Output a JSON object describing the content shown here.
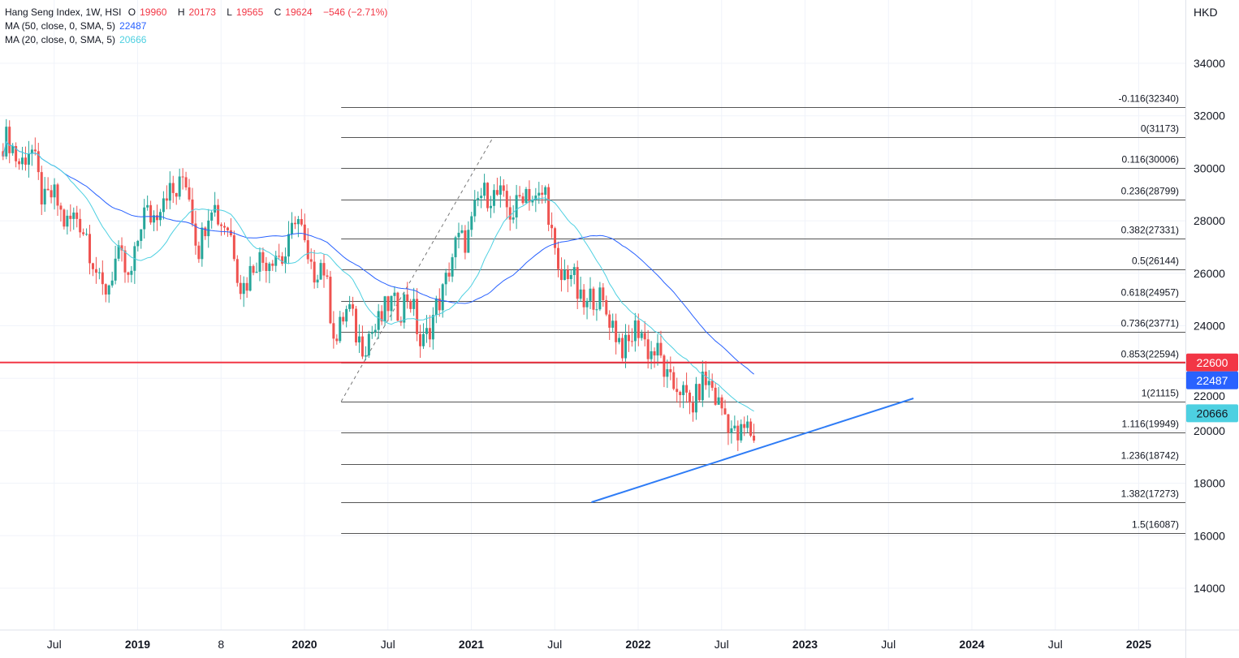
{
  "header": {
    "symbol": "Hang Seng Index, 1W, HSI",
    "open_label": "O",
    "open": "19960",
    "high_label": "H",
    "high": "20173",
    "low_label": "L",
    "low": "19565",
    "close_label": "C",
    "close": "19624",
    "change": "−546 (−2.71%)",
    "ma50_label": "MA (50, close, 0, SMA, 5)",
    "ma50_value": "22487",
    "ma20_label": "MA (20, close, 0, SMA, 5)",
    "ma20_value": "20666"
  },
  "currency": "HKD",
  "colors": {
    "up": "#26a69a",
    "down": "#ef5350",
    "ma50": "#2962ff",
    "ma20": "#4dd0e1",
    "hline": "#f23645",
    "trend": "#2e7cf6",
    "fib": "#555555",
    "grid": "#f0f3fa"
  },
  "chart_data": {
    "type": "candlestick",
    "title": "Hang Seng Index, 1W, HSI",
    "ylim": [
      12500,
      36000
    ],
    "y_ticks": [
      "14000",
      "16000",
      "18000",
      "20000",
      "22000",
      "24000",
      "26000",
      "28000",
      "30000",
      "32000",
      "34000"
    ],
    "x_ticks": [
      {
        "label": "Jul",
        "t": 2018.5
      },
      {
        "label": "2019",
        "t": 2019.0
      },
      {
        "label": "8",
        "t": 2019.5
      },
      {
        "label": "2020",
        "t": 2020.0
      },
      {
        "label": "Jul",
        "t": 2020.5
      },
      {
        "label": "2021",
        "t": 2021.0
      },
      {
        "label": "Jul",
        "t": 2021.5
      },
      {
        "label": "2022",
        "t": 2022.0
      },
      {
        "label": "Jul",
        "t": 2022.5
      },
      {
        "label": "2023",
        "t": 2023.0
      },
      {
        "label": "Jul",
        "t": 2023.5
      },
      {
        "label": "2024",
        "t": 2024.0
      },
      {
        "label": "Jul",
        "t": 2024.5
      },
      {
        "label": "2025",
        "t": 2025.0
      }
    ],
    "monthly_closes_from_mar_2018": [
      31000,
      30500,
      30500,
      28900,
      28500,
      27900,
      27800,
      25000,
      26500,
      25800,
      27900,
      28600,
      29000,
      29700,
      27200,
      28500,
      28100,
      25700,
      26100,
      26900,
      26300,
      28200,
      26300,
      26100,
      23600,
      24600,
      23000,
      24400,
      24600,
      25200,
      23500,
      24100,
      26300,
      27200,
      28300,
      29400,
      28400,
      28700,
      29100,
      28800,
      25900,
      25800,
      24600,
      25300,
      23500,
      23400,
      23800,
      22700,
      22000,
      21100,
      21400,
      21900,
      20200,
      20000,
      19624
    ],
    "fib_retracement": {
      "from": {
        "t": 2020.22,
        "price": 21115
      },
      "to": {
        "t": 2021.13,
        "price": 31173
      },
      "levels": [
        {
          "label": "-0.116(32340)",
          "price": 32340
        },
        {
          "label": "0(31173)",
          "price": 31173
        },
        {
          "label": "0.116(30006)",
          "price": 30006
        },
        {
          "label": "0.236(28799)",
          "price": 28799
        },
        {
          "label": "0.382(27331)",
          "price": 27331
        },
        {
          "label": "0.5(26144)",
          "price": 26144
        },
        {
          "label": "0.618(24957)",
          "price": 24957
        },
        {
          "label": "0.736(23771)",
          "price": 23771
        },
        {
          "label": "0.853(22594)",
          "price": 22594
        },
        {
          "label": "1(21115)",
          "price": 21115
        },
        {
          "label": "1.116(19949)",
          "price": 19949
        },
        {
          "label": "1.236(18742)",
          "price": 18742
        },
        {
          "label": "1.382(17273)",
          "price": 17273
        },
        {
          "label": "1.5(16087)",
          "price": 16087
        }
      ]
    },
    "horizontal_line": {
      "price": 22600
    },
    "trend_line": {
      "from": {
        "t": 2021.72,
        "price": 17277
      },
      "to": {
        "t": 2023.65,
        "price": 21233
      }
    },
    "price_labels": [
      {
        "text": "22600",
        "price": 22600,
        "bg": "#f23645",
        "fg": "#ffffff"
      },
      {
        "text": "22487",
        "price": 22487,
        "bg": "#2962ff",
        "fg": "#ffffff"
      },
      {
        "text": "20666",
        "price": 20666,
        "bg": "#4dd0e1",
        "fg": "#131722"
      }
    ]
  }
}
